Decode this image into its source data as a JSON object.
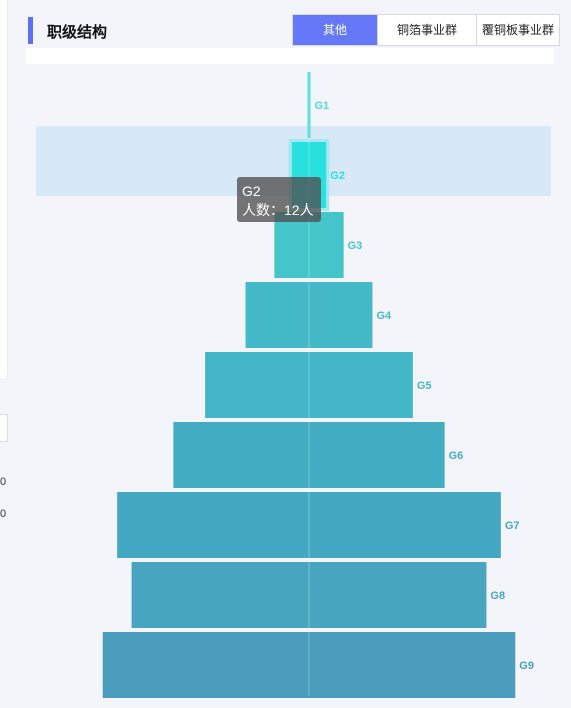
{
  "header": {
    "title": "职级结构",
    "tabs": [
      {
        "label": "其他",
        "active": true
      },
      {
        "label": "铜箔事业群",
        "active": false
      },
      {
        "label": "覆铜板事业群",
        "active": false
      }
    ]
  },
  "left_labels": [
    "0",
    "0"
  ],
  "tooltip": {
    "title": "G2",
    "line_label": "人数：",
    "line_value": "12人"
  },
  "chart_data": {
    "type": "funnel",
    "title": "",
    "categories": [
      "G1",
      "G2",
      "G3",
      "G4",
      "G5",
      "G6",
      "G7",
      "G8",
      "G9"
    ],
    "values": [
      1,
      12,
      24,
      44,
      72,
      94,
      133,
      123,
      143
    ],
    "highlighted": "G2",
    "colors": [
      "#49dcd8",
      "#28e0de",
      "#44c5c9",
      "#44bac8",
      "#43b7c7",
      "#42acc3",
      "#43a8c1",
      "#48a5c0",
      "#4b9dbd"
    ],
    "highlight_band_color": "#d7e8f6"
  }
}
